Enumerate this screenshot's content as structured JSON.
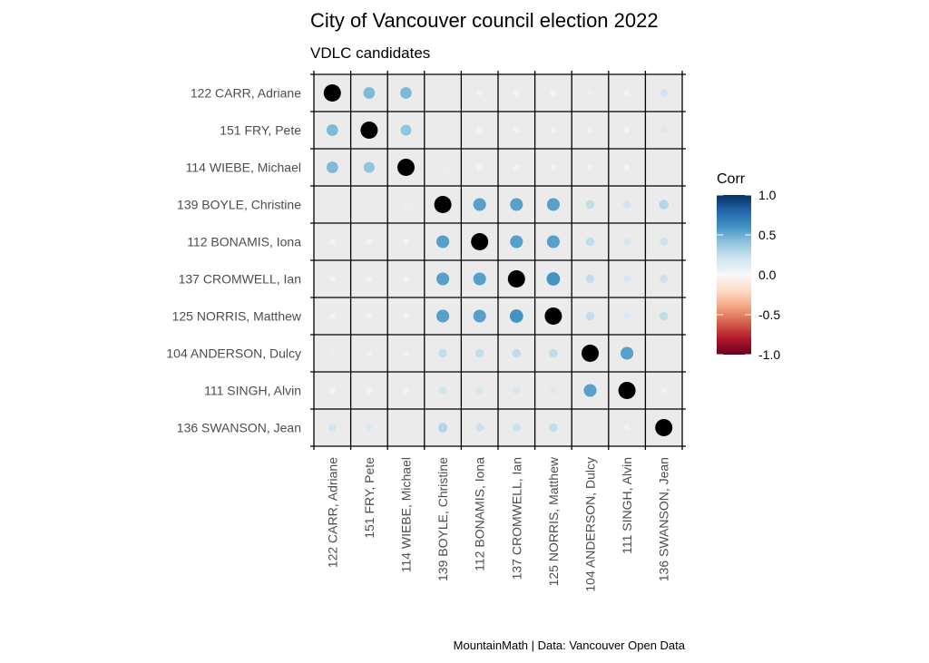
{
  "chart_data": {
    "type": "heatmap",
    "title": "City of Vancouver council election 2022",
    "subtitle": "VDLC candidates",
    "caption": "MountainMath | Data: Vancouver Open Data",
    "candidates": [
      "122 CARR, Adriane",
      "151 FRY, Pete",
      "114 WIEBE, Michael",
      "139 BOYLE, Christine",
      "112 BONAMIS, Iona",
      "137 CROMWELL, Ian",
      "125 NORRIS, Matthew",
      "104 ANDERSON, Dulcy",
      "111 SINGH, Alvin",
      "136 SWANSON, Jean"
    ],
    "matrix": [
      [
        1.0,
        0.45,
        0.45,
        0.1,
        0.04,
        0.03,
        0.03,
        0.08,
        0.03,
        0.2
      ],
      [
        0.45,
        1.0,
        0.4,
        0.1,
        0.03,
        0.03,
        0.03,
        0.06,
        0.03,
        0.15
      ],
      [
        0.45,
        0.4,
        1.0,
        0.08,
        0.03,
        0.03,
        0.03,
        0.06,
        0.03,
        0.12
      ],
      [
        0.1,
        0.1,
        0.08,
        1.0,
        0.55,
        0.55,
        0.55,
        0.25,
        0.2,
        0.3
      ],
      [
        0.04,
        0.03,
        0.03,
        0.55,
        1.0,
        0.55,
        0.55,
        0.25,
        0.18,
        0.22
      ],
      [
        0.03,
        0.03,
        0.03,
        0.55,
        0.55,
        1.0,
        0.6,
        0.25,
        0.18,
        0.22
      ],
      [
        0.03,
        0.03,
        0.03,
        0.55,
        0.55,
        0.6,
        1.0,
        0.25,
        0.15,
        0.25
      ],
      [
        0.08,
        0.06,
        0.06,
        0.25,
        0.25,
        0.25,
        0.25,
        1.0,
        0.55,
        0.1
      ],
      [
        0.03,
        0.03,
        0.03,
        0.2,
        0.18,
        0.18,
        0.15,
        0.55,
        1.0,
        0.05
      ],
      [
        0.2,
        0.15,
        0.12,
        0.3,
        0.22,
        0.22,
        0.25,
        0.1,
        0.05,
        1.0
      ]
    ],
    "diagonal_color": "#000000",
    "legend": {
      "title": "Corr",
      "ticks": [
        "1.0",
        "0.5",
        "0.0",
        "-0.5",
        "-1.0"
      ],
      "tick_values": [
        1.0,
        0.5,
        0.0,
        -0.5,
        -1.0
      ],
      "colors": [
        "#053061",
        "#2166ac",
        "#4393c3",
        "#92c5de",
        "#d1e5f0",
        "#f7f7f7",
        "#fddbc7",
        "#f4a582",
        "#d6604d",
        "#b2182b",
        "#67001f"
      ]
    },
    "panel_background": "#ebebeb",
    "grid_color": "#000000"
  }
}
